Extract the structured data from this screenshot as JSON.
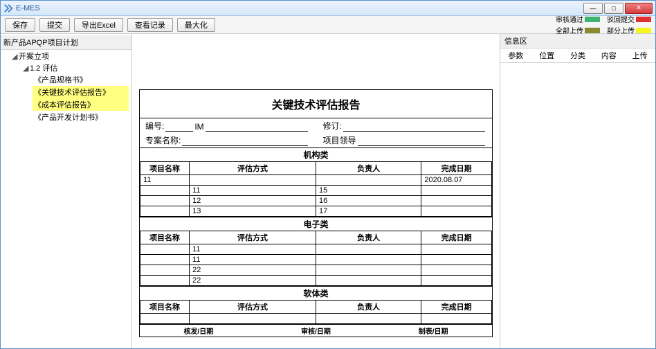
{
  "titlebar": {
    "title": "E-MES"
  },
  "toolbar": {
    "save": "保存",
    "submit": "提交",
    "export_excel": "导出Excel",
    "view_record": "查看记录",
    "maximize": "最大化"
  },
  "legend": {
    "approved": {
      "label": "审核通过",
      "color": "#3cb371"
    },
    "returned": {
      "label": "驳回提交",
      "color": "#e03030"
    },
    "all_uploaded": {
      "label": "全部上传",
      "color": "#8a8a30"
    },
    "partial_uploaded": {
      "label": "部分上传",
      "color": "#f5f520"
    }
  },
  "tree": {
    "header": "新产品APQP项目计划",
    "root": "开案立项",
    "node12": "1.2 评估",
    "items": [
      "《产品规格书》",
      "《关键技术评估报告》",
      "《成本评估报告》",
      "《产品开发计划书》"
    ]
  },
  "doc": {
    "title": "关键技术评估报告",
    "meta": {
      "number_label": "编号:",
      "number_value": "IM",
      "revision_label": "修订:",
      "project_name_label": "专案名称:",
      "project_leader_label": "项目领导"
    },
    "columns": {
      "name": "项目名称",
      "method": "评估方式",
      "person": "负责人",
      "date": "完成日期"
    },
    "sections": [
      {
        "head": "机构类",
        "rows": [
          {
            "name": "11",
            "method": "",
            "person": "",
            "date": "2020.08.07"
          },
          {
            "name": "",
            "method": "11",
            "person": "15",
            "date": ""
          },
          {
            "name": "",
            "method": "12",
            "person": "16",
            "date": ""
          },
          {
            "name": "",
            "method": "13",
            "person": "17",
            "date": ""
          }
        ]
      },
      {
        "head": "电子类",
        "rows": [
          {
            "name": "",
            "method": "11",
            "person": "",
            "date": ""
          },
          {
            "name": "",
            "method": "11",
            "person": "",
            "date": ""
          },
          {
            "name": "",
            "method": "22",
            "person": "",
            "date": ""
          },
          {
            "name": "",
            "method": "22",
            "person": "",
            "date": ""
          }
        ]
      },
      {
        "head": "软体类",
        "rows": [
          {
            "name": "",
            "method": "",
            "person": "",
            "date": ""
          }
        ]
      }
    ],
    "footer": {
      "issue_date": "核发/日期",
      "review_date": "审核/日期",
      "made_date": "制表/日期"
    }
  },
  "info_panel": {
    "title": "信息区",
    "columns": {
      "param": "参数",
      "position": "位置",
      "category": "分类",
      "content": "内容",
      "upload": "上传"
    }
  }
}
